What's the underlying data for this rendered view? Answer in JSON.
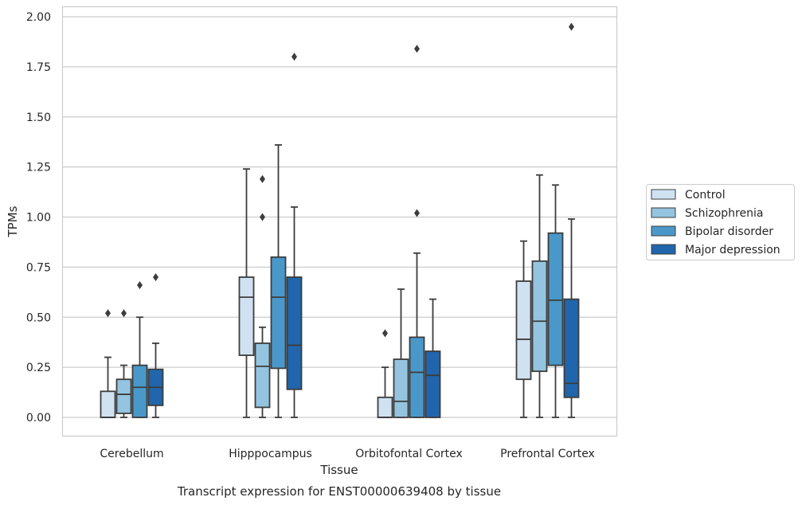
{
  "chart_data": {
    "type": "box",
    "xlabel": "Tissue",
    "ylabel": "TPMs",
    "caption": "Transcript expression for ENST00000639408 by tissue",
    "ylim": [
      -0.1,
      2.05
    ],
    "yticks": [
      0.0,
      0.25,
      0.5,
      0.75,
      1.0,
      1.25,
      1.5,
      1.75,
      2.0
    ],
    "ytick_labels": [
      "0.00",
      "0.25",
      "0.50",
      "0.75",
      "1.00",
      "1.25",
      "1.50",
      "1.75",
      "2.00"
    ],
    "grid": true,
    "legend_position": "center-right, outside plot",
    "categories": [
      "Cerebellum",
      "Hipppocampus",
      "Orbitofontal Cortex",
      "Prefrontal Cortex"
    ],
    "series": [
      {
        "name": "Control",
        "color": "#d0e1f2",
        "boxes": [
          {
            "whislo": 0.0,
            "q1": 0.0,
            "med": 0.0,
            "q3": 0.13,
            "whishi": 0.3,
            "fliers": [
              0.52
            ]
          },
          {
            "whislo": 0.0,
            "q1": 0.31,
            "med": 0.6,
            "q3": 0.7,
            "whishi": 1.24,
            "fliers": []
          },
          {
            "whislo": 0.0,
            "q1": 0.0,
            "med": 0.0,
            "q3": 0.1,
            "whishi": 0.25,
            "fliers": [
              0.42
            ]
          },
          {
            "whislo": 0.0,
            "q1": 0.19,
            "med": 0.39,
            "q3": 0.68,
            "whishi": 0.88,
            "fliers": []
          }
        ]
      },
      {
        "name": "Schizophrenia",
        "color": "#94c4df",
        "boxes": [
          {
            "whislo": 0.0,
            "q1": 0.02,
            "med": 0.115,
            "q3": 0.19,
            "whishi": 0.26,
            "fliers": [
              0.52
            ]
          },
          {
            "whislo": 0.0,
            "q1": 0.05,
            "med": 0.255,
            "q3": 0.37,
            "whishi": 0.45,
            "fliers": [
              1.0,
              1.19
            ]
          },
          {
            "whislo": 0.0,
            "q1": 0.0,
            "med": 0.08,
            "q3": 0.29,
            "whishi": 0.64,
            "fliers": []
          },
          {
            "whislo": 0.0,
            "q1": 0.23,
            "med": 0.48,
            "q3": 0.78,
            "whishi": 1.21,
            "fliers": []
          }
        ]
      },
      {
        "name": "Bipolar disorder",
        "color": "#4a98c9",
        "boxes": [
          {
            "whislo": 0.0,
            "q1": 0.0,
            "med": 0.15,
            "q3": 0.26,
            "whishi": 0.5,
            "fliers": [
              0.66
            ]
          },
          {
            "whislo": 0.0,
            "q1": 0.245,
            "med": 0.6,
            "q3": 0.8,
            "whishi": 1.36,
            "fliers": []
          },
          {
            "whislo": 0.0,
            "q1": 0.0,
            "med": 0.225,
            "q3": 0.4,
            "whishi": 0.82,
            "fliers": [
              1.02,
              1.84
            ]
          },
          {
            "whislo": 0.0,
            "q1": 0.26,
            "med": 0.585,
            "q3": 0.92,
            "whishi": 1.16,
            "fliers": []
          }
        ]
      },
      {
        "name": "Major depression",
        "color": "#2166ac",
        "boxes": [
          {
            "whislo": 0.0,
            "q1": 0.06,
            "med": 0.15,
            "q3": 0.24,
            "whishi": 0.37,
            "fliers": [
              0.7
            ]
          },
          {
            "whislo": 0.0,
            "q1": 0.14,
            "med": 0.36,
            "q3": 0.7,
            "whishi": 1.05,
            "fliers": [
              1.8
            ]
          },
          {
            "whislo": 0.0,
            "q1": 0.0,
            "med": 0.21,
            "q3": 0.33,
            "whishi": 0.59,
            "fliers": []
          },
          {
            "whislo": 0.0,
            "q1": 0.1,
            "med": 0.17,
            "q3": 0.59,
            "whishi": 0.99,
            "fliers": [
              1.95
            ]
          }
        ]
      }
    ]
  }
}
